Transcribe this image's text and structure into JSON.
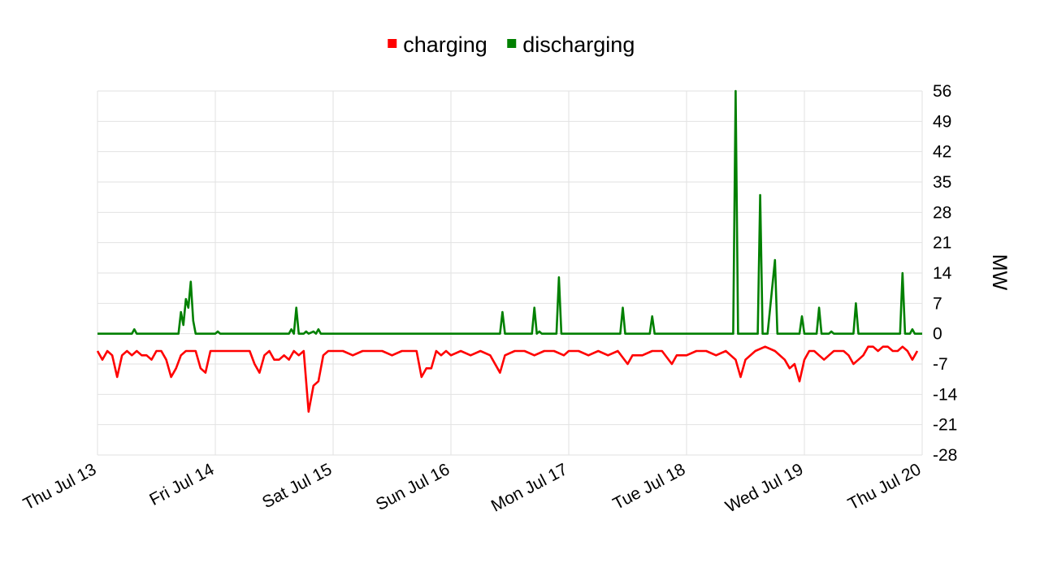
{
  "chart_data": {
    "type": "line",
    "title": "",
    "xlabel": "",
    "ylabel": "MW",
    "x_range": [
      "2023-07-13",
      "2023-07-20"
    ],
    "x_ticks": [
      "Thu Jul 13",
      "Fri Jul 14",
      "Sat Jul 15",
      "Sun Jul 16",
      "Mon Jul 17",
      "Tue Jul 18",
      "Wed Jul 19",
      "Thu Jul 20"
    ],
    "ylim": [
      -28,
      56
    ],
    "y_ticks": [
      -28,
      -21,
      -14,
      -7,
      0,
      7,
      14,
      21,
      28,
      35,
      42,
      49,
      56
    ],
    "grid": true,
    "legend_position": "top-center",
    "series": [
      {
        "name": "charging",
        "color": "#ff0000",
        "points": [
          [
            "2023-07-13 00:00",
            -4
          ],
          [
            "2023-07-13 01:00",
            -6
          ],
          [
            "2023-07-13 02:00",
            -4
          ],
          [
            "2023-07-13 03:00",
            -5
          ],
          [
            "2023-07-13 04:00",
            -10
          ],
          [
            "2023-07-13 05:00",
            -5
          ],
          [
            "2023-07-13 06:00",
            -4
          ],
          [
            "2023-07-13 07:00",
            -5
          ],
          [
            "2023-07-13 08:00",
            -4
          ],
          [
            "2023-07-13 09:00",
            -5
          ],
          [
            "2023-07-13 10:00",
            -5
          ],
          [
            "2023-07-13 11:00",
            -6
          ],
          [
            "2023-07-13 12:00",
            -4
          ],
          [
            "2023-07-13 13:00",
            -4
          ],
          [
            "2023-07-13 14:00",
            -6
          ],
          [
            "2023-07-13 15:00",
            -10
          ],
          [
            "2023-07-13 16:00",
            -8
          ],
          [
            "2023-07-13 17:00",
            -5
          ],
          [
            "2023-07-13 18:00",
            -4
          ],
          [
            "2023-07-13 19:00",
            -4
          ],
          [
            "2023-07-13 20:00",
            -4
          ],
          [
            "2023-07-13 21:00",
            -8
          ],
          [
            "2023-07-13 22:00",
            -9
          ],
          [
            "2023-07-13 23:00",
            -4
          ],
          [
            "2023-07-14 00:00",
            -4
          ],
          [
            "2023-07-14 01:00",
            -4
          ],
          [
            "2023-07-14 02:00",
            -4
          ],
          [
            "2023-07-14 03:00",
            -4
          ],
          [
            "2023-07-14 04:00",
            -4
          ],
          [
            "2023-07-14 05:00",
            -4
          ],
          [
            "2023-07-14 06:00",
            -4
          ],
          [
            "2023-07-14 07:00",
            -4
          ],
          [
            "2023-07-14 08:00",
            -7
          ],
          [
            "2023-07-14 09:00",
            -9
          ],
          [
            "2023-07-14 10:00",
            -5
          ],
          [
            "2023-07-14 11:00",
            -4
          ],
          [
            "2023-07-14 12:00",
            -6
          ],
          [
            "2023-07-14 13:00",
            -6
          ],
          [
            "2023-07-14 14:00",
            -5
          ],
          [
            "2023-07-14 15:00",
            -6
          ],
          [
            "2023-07-14 16:00",
            -4
          ],
          [
            "2023-07-14 17:00",
            -5
          ],
          [
            "2023-07-14 18:00",
            -4
          ],
          [
            "2023-07-14 19:00",
            -18
          ],
          [
            "2023-07-14 20:00",
            -12
          ],
          [
            "2023-07-14 21:00",
            -11
          ],
          [
            "2023-07-14 22:00",
            -5
          ],
          [
            "2023-07-14 23:00",
            -4
          ],
          [
            "2023-07-15 00:00",
            -4
          ],
          [
            "2023-07-15 02:00",
            -4
          ],
          [
            "2023-07-15 04:00",
            -5
          ],
          [
            "2023-07-15 06:00",
            -4
          ],
          [
            "2023-07-15 08:00",
            -4
          ],
          [
            "2023-07-15 10:00",
            -4
          ],
          [
            "2023-07-15 12:00",
            -5
          ],
          [
            "2023-07-15 14:00",
            -4
          ],
          [
            "2023-07-15 16:00",
            -4
          ],
          [
            "2023-07-15 17:00",
            -4
          ],
          [
            "2023-07-15 18:00",
            -10
          ],
          [
            "2023-07-15 19:00",
            -8
          ],
          [
            "2023-07-15 20:00",
            -8
          ],
          [
            "2023-07-15 21:00",
            -4
          ],
          [
            "2023-07-15 22:00",
            -5
          ],
          [
            "2023-07-15 23:00",
            -4
          ],
          [
            "2023-07-16 00:00",
            -5
          ],
          [
            "2023-07-16 02:00",
            -4
          ],
          [
            "2023-07-16 04:00",
            -5
          ],
          [
            "2023-07-16 06:00",
            -4
          ],
          [
            "2023-07-16 08:00",
            -5
          ],
          [
            "2023-07-16 10:00",
            -9
          ],
          [
            "2023-07-16 11:00",
            -5
          ],
          [
            "2023-07-16 13:00",
            -4
          ],
          [
            "2023-07-16 15:00",
            -4
          ],
          [
            "2023-07-16 17:00",
            -5
          ],
          [
            "2023-07-16 19:00",
            -4
          ],
          [
            "2023-07-16 21:00",
            -4
          ],
          [
            "2023-07-16 23:00",
            -5
          ],
          [
            "2023-07-17 00:00",
            -4
          ],
          [
            "2023-07-17 02:00",
            -4
          ],
          [
            "2023-07-17 04:00",
            -5
          ],
          [
            "2023-07-17 06:00",
            -4
          ],
          [
            "2023-07-17 08:00",
            -5
          ],
          [
            "2023-07-17 10:00",
            -4
          ],
          [
            "2023-07-17 12:00",
            -7
          ],
          [
            "2023-07-17 13:00",
            -5
          ],
          [
            "2023-07-17 15:00",
            -5
          ],
          [
            "2023-07-17 17:00",
            -4
          ],
          [
            "2023-07-17 19:00",
            -4
          ],
          [
            "2023-07-17 21:00",
            -7
          ],
          [
            "2023-07-17 22:00",
            -5
          ],
          [
            "2023-07-17 23:00",
            -5
          ],
          [
            "2023-07-18 00:00",
            -5
          ],
          [
            "2023-07-18 02:00",
            -4
          ],
          [
            "2023-07-18 04:00",
            -4
          ],
          [
            "2023-07-18 06:00",
            -5
          ],
          [
            "2023-07-18 08:00",
            -4
          ],
          [
            "2023-07-18 10:00",
            -6
          ],
          [
            "2023-07-18 11:00",
            -10
          ],
          [
            "2023-07-18 12:00",
            -6
          ],
          [
            "2023-07-18 14:00",
            -4
          ],
          [
            "2023-07-18 16:00",
            -3
          ],
          [
            "2023-07-18 18:00",
            -4
          ],
          [
            "2023-07-18 20:00",
            -6
          ],
          [
            "2023-07-18 21:00",
            -8
          ],
          [
            "2023-07-18 22:00",
            -7
          ],
          [
            "2023-07-18 23:00",
            -11
          ],
          [
            "2023-07-19 00:00",
            -6
          ],
          [
            "2023-07-19 01:00",
            -4
          ],
          [
            "2023-07-19 02:00",
            -4
          ],
          [
            "2023-07-19 03:00",
            -5
          ],
          [
            "2023-07-19 04:00",
            -6
          ],
          [
            "2023-07-19 05:00",
            -5
          ],
          [
            "2023-07-19 06:00",
            -4
          ],
          [
            "2023-07-19 07:00",
            -4
          ],
          [
            "2023-07-19 08:00",
            -4
          ],
          [
            "2023-07-19 09:00",
            -5
          ],
          [
            "2023-07-19 10:00",
            -7
          ],
          [
            "2023-07-19 11:00",
            -6
          ],
          [
            "2023-07-19 12:00",
            -5
          ],
          [
            "2023-07-19 13:00",
            -3
          ],
          [
            "2023-07-19 14:00",
            -3
          ],
          [
            "2023-07-19 15:00",
            -4
          ],
          [
            "2023-07-19 16:00",
            -3
          ],
          [
            "2023-07-19 17:00",
            -3
          ],
          [
            "2023-07-19 18:00",
            -4
          ],
          [
            "2023-07-19 19:00",
            -4
          ],
          [
            "2023-07-19 20:00",
            -3
          ],
          [
            "2023-07-19 21:00",
            -4
          ],
          [
            "2023-07-19 22:00",
            -6
          ],
          [
            "2023-07-19 23:00",
            -4
          ]
        ],
        "note_days_start": "2023-07-13"
      },
      {
        "name": "discharging",
        "color": "#008000",
        "points": [
          [
            "2023-07-13 00:00",
            0
          ],
          [
            "2023-07-13 07:00",
            0
          ],
          [
            "2023-07-13 07:30",
            1
          ],
          [
            "2023-07-13 08:00",
            0
          ],
          [
            "2023-07-13 16:30",
            0
          ],
          [
            "2023-07-13 17:00",
            5
          ],
          [
            "2023-07-13 17:30",
            2
          ],
          [
            "2023-07-13 18:00",
            8
          ],
          [
            "2023-07-13 18:30",
            6
          ],
          [
            "2023-07-13 19:00",
            12
          ],
          [
            "2023-07-13 19:30",
            3
          ],
          [
            "2023-07-13 20:00",
            0
          ],
          [
            "2023-07-14 00:00",
            0
          ],
          [
            "2023-07-14 00:30",
            0.5
          ],
          [
            "2023-07-14 01:00",
            0
          ],
          [
            "2023-07-14 15:00",
            0
          ],
          [
            "2023-07-14 15:30",
            1
          ],
          [
            "2023-07-14 16:00",
            0
          ],
          [
            "2023-07-14 16:30",
            6
          ],
          [
            "2023-07-14 17:00",
            0
          ],
          [
            "2023-07-14 18:00",
            0
          ],
          [
            "2023-07-14 18:30",
            0.5
          ],
          [
            "2023-07-14 19:00",
            0
          ],
          [
            "2023-07-14 20:00",
            0.5
          ],
          [
            "2023-07-14 20:30",
            0
          ],
          [
            "2023-07-14 21:00",
            1
          ],
          [
            "2023-07-14 21:30",
            0
          ],
          [
            "2023-07-16 10:00",
            0
          ],
          [
            "2023-07-16 10:30",
            5
          ],
          [
            "2023-07-16 11:00",
            0
          ],
          [
            "2023-07-16 16:30",
            0
          ],
          [
            "2023-07-16 17:00",
            6
          ],
          [
            "2023-07-16 17:30",
            0
          ],
          [
            "2023-07-16 18:00",
            0.5
          ],
          [
            "2023-07-16 18:30",
            0
          ],
          [
            "2023-07-16 21:30",
            0
          ],
          [
            "2023-07-16 22:00",
            13
          ],
          [
            "2023-07-16 22:30",
            0
          ],
          [
            "2023-07-17 10:30",
            0
          ],
          [
            "2023-07-17 11:00",
            6
          ],
          [
            "2023-07-17 11:30",
            0
          ],
          [
            "2023-07-17 16:30",
            0
          ],
          [
            "2023-07-17 17:00",
            4
          ],
          [
            "2023-07-17 17:30",
            0
          ],
          [
            "2023-07-18 09:30",
            0
          ],
          [
            "2023-07-18 10:00",
            56
          ],
          [
            "2023-07-18 10:30",
            0
          ],
          [
            "2023-07-18 14:30",
            0
          ],
          [
            "2023-07-18 15:00",
            32
          ],
          [
            "2023-07-18 15:30",
            0
          ],
          [
            "2023-07-18 16:30",
            0
          ],
          [
            "2023-07-18 18:00",
            17
          ],
          [
            "2023-07-18 18:30",
            0
          ],
          [
            "2023-07-18 23:00",
            0
          ],
          [
            "2023-07-18 23:30",
            4
          ],
          [
            "2023-07-19 00:00",
            0
          ],
          [
            "2023-07-19 02:30",
            0
          ],
          [
            "2023-07-19 03:00",
            6
          ],
          [
            "2023-07-19 03:30",
            0
          ],
          [
            "2023-07-19 05:00",
            0
          ],
          [
            "2023-07-19 05:30",
            0.5
          ],
          [
            "2023-07-19 06:00",
            0
          ],
          [
            "2023-07-19 10:00",
            0
          ],
          [
            "2023-07-19 10:30",
            7
          ],
          [
            "2023-07-19 11:00",
            0
          ],
          [
            "2023-07-19 19:30",
            0
          ],
          [
            "2023-07-19 20:00",
            14
          ],
          [
            "2023-07-19 20:30",
            0
          ],
          [
            "2023-07-19 21:30",
            0
          ],
          [
            "2023-07-19 22:00",
            1
          ],
          [
            "2023-07-19 22:30",
            0
          ],
          [
            "2023-07-20 00:00",
            0
          ]
        ]
      }
    ]
  },
  "legend": {
    "items": [
      {
        "label": "charging",
        "color": "#ff0000"
      },
      {
        "label": "discharging",
        "color": "#008000"
      }
    ]
  },
  "axis": {
    "y_title": "MW"
  }
}
